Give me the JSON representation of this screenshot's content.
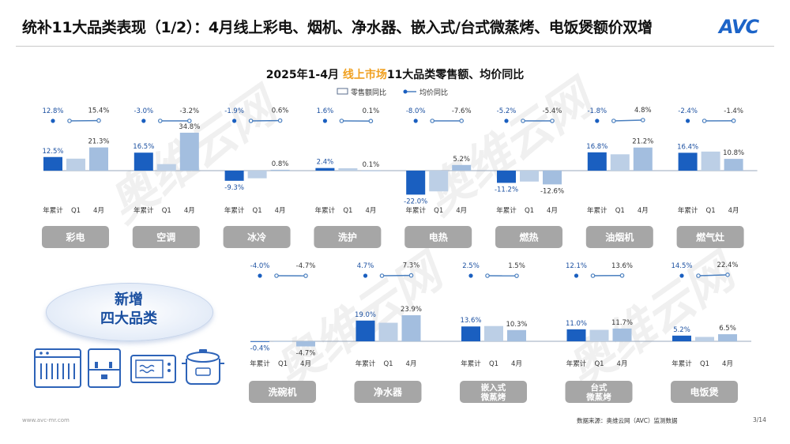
{
  "header": {
    "title": "统补11大品类表现（1/2）：4月线上彩电、烟机、净水器、嵌入式/台式微蒸烤、电饭煲额价双增",
    "logo_text": "AVC"
  },
  "chart_header": {
    "title_prefix": "2025年1-4月 ",
    "title_highlight": "线上市场",
    "title_suffix": "11大品类零售额、均价同比",
    "legend_bar": "零售额同比",
    "legend_line": "均价同比"
  },
  "new_categories": {
    "line1": "新增",
    "line2": "四大品类"
  },
  "footer": {
    "url": "www.avc-mr.com",
    "source": "数据来源：奥维云网（AVC）监测数据",
    "page": "3/14"
  },
  "watermark": "奥维云网",
  "colors": {
    "bar_ytd": "#1a5fc0",
    "bar_q1": "#bccfe6",
    "bar_apr": "#a3bedf",
    "line": "#4a7fbf",
    "category_box": "#a6a6a6",
    "axis": "#9aa8bd"
  },
  "chart_data": {
    "type": "bar",
    "period_labels": [
      "年累计",
      "Q1",
      "4月"
    ],
    "categories": [
      {
        "name": "彩电",
        "sales": [
          12.5,
          null,
          21.3
        ],
        "price": [
          12.8,
          null,
          15.4
        ]
      },
      {
        "name": "空调",
        "sales": [
          16.5,
          null,
          34.8
        ],
        "price": [
          -3.0,
          null,
          -3.2
        ]
      },
      {
        "name": "冰冷",
        "sales": [
          -9.3,
          null,
          0.8
        ],
        "price": [
          -1.9,
          null,
          0.6
        ]
      },
      {
        "name": "洗护",
        "sales": [
          2.4,
          null,
          0.1
        ],
        "price": [
          1.6,
          null,
          0.1
        ]
      },
      {
        "name": "电热",
        "sales": [
          -22.0,
          null,
          5.2
        ],
        "price": [
          -8.0,
          null,
          -7.6
        ]
      },
      {
        "name": "燃热",
        "sales": [
          -11.2,
          null,
          -12.6
        ],
        "price": [
          -5.2,
          null,
          -5.4
        ]
      },
      {
        "name": "油烟机",
        "sales": [
          16.8,
          null,
          21.2
        ],
        "price": [
          -1.8,
          null,
          4.8
        ]
      },
      {
        "name": "燃气灶",
        "sales": [
          16.4,
          null,
          10.8
        ],
        "price": [
          -2.4,
          null,
          -1.4
        ]
      },
      {
        "name": "洗碗机",
        "sales": [
          -0.4,
          null,
          -4.7
        ],
        "price": [
          -4.0,
          null,
          -4.7
        ]
      },
      {
        "name": "净水器",
        "sales": [
          19.0,
          null,
          23.9
        ],
        "price": [
          4.7,
          null,
          7.3
        ]
      },
      {
        "name": "嵌入式\n微蒸烤",
        "sales": [
          13.6,
          null,
          10.3
        ],
        "price": [
          2.5,
          null,
          1.5
        ]
      },
      {
        "name": "台式\n微蒸烤",
        "sales": [
          11.0,
          null,
          11.7
        ],
        "price": [
          12.1,
          null,
          13.6
        ]
      },
      {
        "name": "电饭煲",
        "sales": [
          5.2,
          null,
          6.5
        ],
        "price": [
          14.5,
          null,
          22.4
        ]
      }
    ],
    "q1_sales_estimated": [
      11.0,
      6.0,
      -7.0,
      2.2,
      -19.0,
      -10.0,
      15.0,
      17.5,
      -0.5,
      17.0,
      14.0,
      10.5,
      4.0
    ],
    "bar_units": "%",
    "series": [
      {
        "name": "零售额同比",
        "kind": "bar"
      },
      {
        "name": "均价同比",
        "kind": "line"
      }
    ]
  }
}
